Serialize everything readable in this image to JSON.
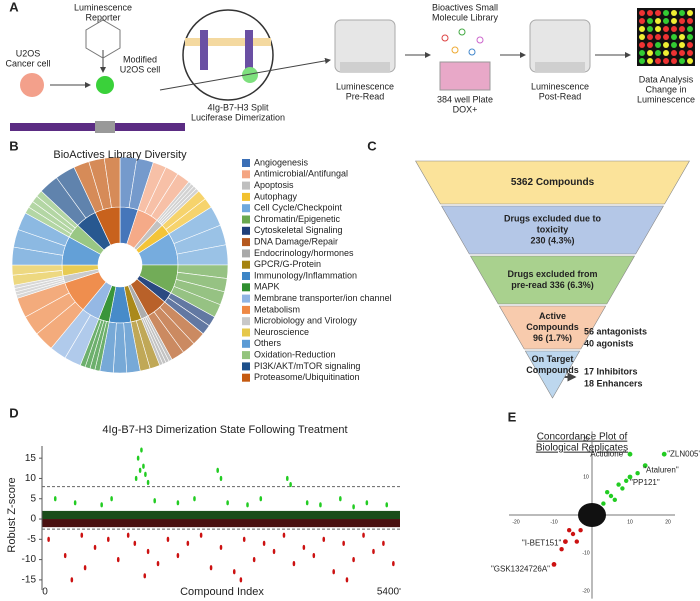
{
  "panel_a": {
    "letter": "A",
    "reporter": [
      "Luminescence",
      "Reporter"
    ],
    "cancer_cell": [
      "U2OS",
      "Cancer cell"
    ],
    "modified_cell": [
      "Modified",
      "U2OS cell"
    ],
    "dimerization": [
      "4Ig-B7-H3 Split",
      "Luciferase Dimerization"
    ],
    "pre_read": [
      "Luminescence",
      "Pre-Read"
    ],
    "library": [
      "Bioactives Small",
      "Molecule Library"
    ],
    "plate": [
      "384 well Plate",
      "DOX+"
    ],
    "post_read": [
      "Luminescence",
      "Post-Read"
    ],
    "analysis": [
      "Data Analysis",
      "Change in",
      "Luminescence"
    ]
  },
  "panel_b": {
    "letter": "B",
    "title": "BioActives Library Diversity",
    "legend": [
      {
        "name": "Angiogenesis",
        "color": "#3b6fb6"
      },
      {
        "name": "Antimicrobial/Antifungal",
        "color": "#f4a582"
      },
      {
        "name": "Apoptosis",
        "color": "#bfbfbf"
      },
      {
        "name": "Autophagy",
        "color": "#f2c12e"
      },
      {
        "name": "Cell Cycle/Checkpoint",
        "color": "#6fa8dc"
      },
      {
        "name": "Chromatin/Epigenetic",
        "color": "#6aa84f"
      },
      {
        "name": "Cytoskeletal Signaling",
        "color": "#1f3f7a"
      },
      {
        "name": "DNA Damage/Repair",
        "color": "#b5581e"
      },
      {
        "name": "Endocrinology/hormones",
        "color": "#a9a9a9"
      },
      {
        "name": "GPCR/G-Protein",
        "color": "#a5830f"
      },
      {
        "name": "Immunology/Inflammation",
        "color": "#3d85c6"
      },
      {
        "name": "MAPK",
        "color": "#2f8f2f"
      },
      {
        "name": "Membrane transporter/ion channel",
        "color": "#8fb4e3"
      },
      {
        "name": "Metabolism",
        "color": "#ee8844"
      },
      {
        "name": "Microbiology and Virology",
        "color": "#c8c8c8"
      },
      {
        "name": "Neuroscience",
        "color": "#e6c84a"
      },
      {
        "name": "Others",
        "color": "#5b9bd5"
      },
      {
        "name": "Oxidation-Reduction",
        "color": "#93c47d"
      },
      {
        "name": "PI3K/AKT/mTOR signaling",
        "color": "#1c4f8a"
      },
      {
        "name": "Proteasome/Ubiquitination",
        "color": "#c55a11"
      }
    ]
  },
  "panel_c": {
    "letter": "C",
    "stages": [
      {
        "lines": [
          "5362 Compounds"
        ],
        "color": "#fbe39a"
      },
      {
        "lines": [
          "Drugs excluded due to",
          "toxicity",
          "230 (4.3%)"
        ],
        "color": "#b4c7e7"
      },
      {
        "lines": [
          "Drugs excluded from",
          "pre-read 336 (6.3%)"
        ],
        "color": "#a9d18e"
      },
      {
        "lines": [
          "Active",
          "Compounds",
          "96 (1.7%)"
        ],
        "color": "#f8cbad"
      },
      {
        "lines": [
          "On Target",
          "Compounds"
        ],
        "color": "#bdd7ee"
      }
    ],
    "active_split": [
      "56 antagonists",
      "40 agonists"
    ],
    "target_split": [
      "17 Inhibitors",
      "18 Enhancers"
    ]
  },
  "chart_data": [
    {
      "type": "scatter",
      "panel": "D",
      "title": "4Ig-B7-H3 Dimerization State Following Treatment",
      "y_label": "Robust Z-score",
      "x_label": "Compound Index",
      "xlim": [
        0,
        5400
      ],
      "xticks": [
        0,
        5400
      ],
      "ylim": [
        -17,
        18
      ],
      "yticks": [
        15,
        10,
        5,
        0,
        -5,
        -10,
        -15
      ],
      "thresholds": [
        8,
        -2.5
      ],
      "series": [
        {
          "color": "#22cc22",
          "x": [
            1450,
            1500,
            1530,
            1480,
            1560,
            1420,
            1600,
            2650,
            2700,
            3700,
            3750,
            200,
            500,
            900,
            1050,
            1700,
            2050,
            2300,
            2800,
            3100,
            3300,
            4000,
            4200,
            4500,
            4900,
            5200,
            4700
          ],
          "values": [
            15,
            17,
            13,
            12,
            11,
            10,
            9,
            12,
            10,
            10,
            8.5,
            5,
            4,
            3.5,
            5,
            4.5,
            4,
            5,
            4,
            3.5,
            5,
            4,
            3.5,
            5,
            4,
            3.5,
            3
          ]
        },
        {
          "color": "#cc1111",
          "x": [
            100,
            350,
            600,
            650,
            800,
            1000,
            1150,
            1300,
            1400,
            1600,
            1750,
            1900,
            2050,
            2200,
            2400,
            2550,
            2700,
            2900,
            3050,
            3200,
            3350,
            3500,
            3650,
            3800,
            3950,
            4100,
            4250,
            4400,
            4550,
            4700,
            4850,
            5000,
            5150,
            5300,
            450,
            1550,
            3000,
            4600
          ],
          "values": [
            -5,
            -9,
            -4,
            -12,
            -7,
            -5,
            -10,
            -4,
            -6,
            -8,
            -11,
            -5,
            -9,
            -6,
            -4,
            -12,
            -7,
            -13,
            -5,
            -10,
            -6,
            -8,
            -4,
            -11,
            -7,
            -9,
            -5,
            -13,
            -6,
            -10,
            -4,
            -8,
            -6,
            -11,
            -15,
            -14,
            -15,
            -15
          ]
        }
      ]
    },
    {
      "type": "scatter",
      "panel": "E",
      "title": [
        "Concordance Plot of",
        "Biological Replicates"
      ],
      "xlim": [
        -25,
        25
      ],
      "xticks": [
        -20,
        -10,
        10,
        20
      ],
      "ylim": [
        -25,
        25
      ],
      "yticks": [
        20,
        10,
        -10,
        -20
      ],
      "labeled": [
        {
          "name": "\"Actidione\"",
          "x": 10,
          "y": 16,
          "color": "#22cc22"
        },
        {
          "name": "\"ZLN005\"",
          "x": 19,
          "y": 16,
          "color": "#22cc22"
        },
        {
          "name": "\"Ataluren\"",
          "x": 14,
          "y": 13,
          "color": "#22cc22"
        },
        {
          "name": "\"PP121\"",
          "x": 10,
          "y": 10,
          "color": "#22cc22"
        },
        {
          "name": "\"I-BET151\"",
          "x": -7,
          "y": -7,
          "color": "#cc1111"
        },
        {
          "name": "\"GSK1324726A\"",
          "x": -10,
          "y": -13,
          "color": "#cc1111"
        }
      ],
      "series": [
        {
          "color": "#22cc22",
          "x": [
            3,
            5,
            6,
            8,
            7,
            4,
            9,
            12
          ],
          "values": [
            3,
            5,
            4,
            7,
            8,
            6,
            9,
            11
          ]
        },
        {
          "color": "#cc1111",
          "x": [
            -3,
            -5,
            -6,
            -4,
            -8
          ],
          "values": [
            -4,
            -5,
            -4,
            -7,
            -9
          ]
        }
      ]
    }
  ]
}
